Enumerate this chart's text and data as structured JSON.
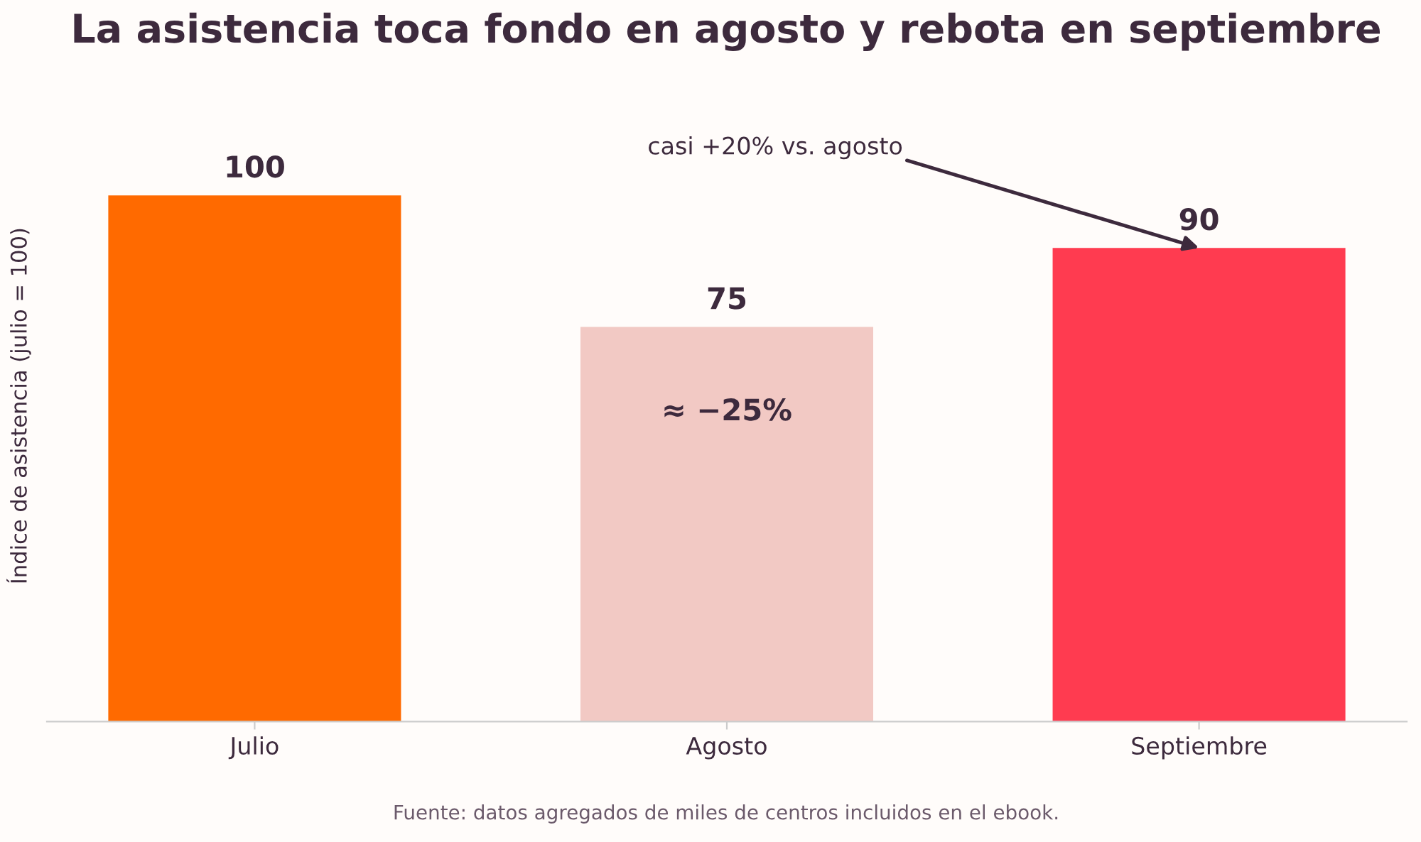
{
  "chart_data": {
    "type": "bar",
    "title": "La asistencia toca fondo en agosto y rebota en septiembre",
    "ylabel": "Índice de asistencia (julio = 100)",
    "categories": [
      "Julio",
      "Agosto",
      "Septiembre"
    ],
    "values": [
      100,
      75,
      90
    ],
    "colors": [
      "#ff6a00",
      "#f2c9c4",
      "#ff3b50"
    ],
    "data_labels": true,
    "grid": false,
    "annotations": [
      "≈ −25%",
      {
        "text": "casi +20% vs. agosto",
        "x": "Septiembre",
        "y": 90
      },
      "Fuente: datos agregados de miles de centros incluidos en el ebook."
    ]
  }
}
